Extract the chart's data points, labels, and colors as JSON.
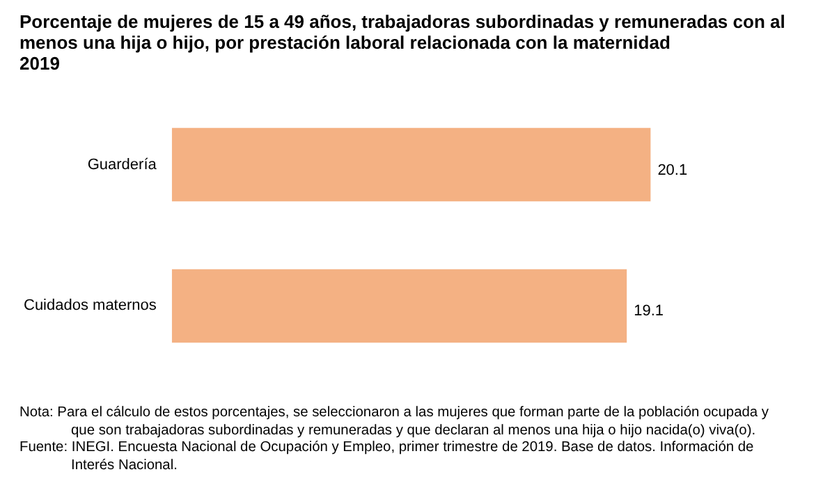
{
  "chart_data": {
    "type": "bar",
    "orientation": "horizontal",
    "tick_labels": "y",
    "title": "Porcentaje de mujeres de 15 a 49 años, trabajadoras subordinadas y remuneradas con al menos una hija o hijo, por prestación laboral relacionada con la maternidad",
    "subtitle": "2019",
    "categories": [
      "Guardería",
      "Cuidados maternos"
    ],
    "values": [
      20.1,
      19.1
    ],
    "color": "#f4b183",
    "data_labels": true,
    "annotations": [
      "Nota: Para el cálculo de estos porcentajes, se seleccionaron a las mujeres que forman parte de la población ocupada y que son trabajadoras subordinadas y remuneradas y que declaran al menos una hija o hijo nacida(o) viva(o).",
      "Fuente: INEGI. Encuesta Nacional de Ocupación y Empleo, primer trimestre de 2019. Base de datos. Información de Interés Nacional."
    ]
  }
}
